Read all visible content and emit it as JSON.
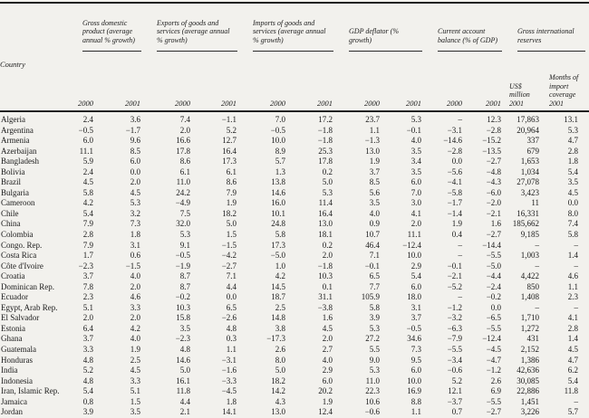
{
  "colors": {
    "background": "#f2f1ed",
    "text": "#1a1a1a",
    "rule": "#222222"
  },
  "table": {
    "country_header": "Country",
    "group_headers": [
      "Gross domestic product (average annual % growth)",
      "Exports of goods and services (average annual % growth)",
      "Imports of goods and services (average annual % growth)",
      "GDP deflator (% growth)",
      "Current account balance (% of GDP)",
      "Gross international reserves"
    ],
    "year_columns": [
      "2000",
      "2001",
      "2000",
      "2001",
      "2000",
      "2001",
      "2000",
      "2001",
      "2000",
      "2001"
    ],
    "reserves_usd_header": "US$\nmillion\n2001",
    "reserves_months_header": "Months of\nimport\ncoverage\n2001",
    "rows": [
      {
        "country": "Algeria",
        "values": [
          "2.4",
          "3.6",
          "7.4",
          "−1.1",
          "7.0",
          "17.2",
          "23.7",
          "5.3",
          "–",
          "12.3",
          "17,863",
          "13.1"
        ]
      },
      {
        "country": "Argentina",
        "values": [
          "−0.5",
          "−1.7",
          "2.0",
          "5.2",
          "−0.5",
          "−1.8",
          "1.1",
          "−0.1",
          "−3.1",
          "−2.8",
          "20,964",
          "5.3"
        ]
      },
      {
        "country": "Armenia",
        "values": [
          "6.0",
          "9.6",
          "16.6",
          "12.7",
          "10.0",
          "−1.8",
          "−1.3",
          "4.0",
          "−14.6",
          "−15.2",
          "337",
          "4.7"
        ]
      },
      {
        "country": "Azerbaijan",
        "values": [
          "11.1",
          "8.5",
          "17.8",
          "16.4",
          "8.9",
          "25.3",
          "13.0",
          "3.5",
          "−2.8",
          "−13.5",
          "679",
          "2.8"
        ]
      },
      {
        "country": "Bangladesh",
        "values": [
          "5.9",
          "6.0",
          "8.6",
          "17.3",
          "5.7",
          "17.8",
          "1.9",
          "3.4",
          "0.0",
          "−2.7",
          "1,653",
          "1.8"
        ]
      },
      {
        "country": "Bolivia",
        "values": [
          "2.4",
          "0.0",
          "6.1",
          "6.1",
          "1.3",
          "0.2",
          "3.7",
          "3.5",
          "−5.6",
          "−4.8",
          "1,034",
          "5.4"
        ]
      },
      {
        "country": "Brazil",
        "values": [
          "4.5",
          "2.0",
          "11.0",
          "8.6",
          "13.8",
          "5.0",
          "8.5",
          "6.0",
          "−4.1",
          "−4.3",
          "27,078",
          "3.5"
        ]
      },
      {
        "country": "Bulgaria",
        "values": [
          "5.8",
          "4.5",
          "24.2",
          "7.9",
          "14.6",
          "5.3",
          "5.6",
          "7.0",
          "−5.8",
          "−6.0",
          "3,423",
          "4.5"
        ]
      },
      {
        "country": "Cameroon",
        "values": [
          "4.2",
          "5.3",
          "−4.9",
          "1.9",
          "16.0",
          "11.4",
          "3.5",
          "3.0",
          "−1.7",
          "−2.0",
          "11",
          "0.0"
        ]
      },
      {
        "country": "Chile",
        "values": [
          "5.4",
          "3.2",
          "7.5",
          "18.2",
          "10.1",
          "16.4",
          "4.0",
          "4.1",
          "−1.4",
          "−2.1",
          "16,331",
          "8.0"
        ]
      },
      {
        "country": "China",
        "values": [
          "7.9",
          "7.3",
          "32.0",
          "5.0",
          "24.8",
          "13.0",
          "0.9",
          "2.0",
          "1.9",
          "1.6",
          "185,662",
          "7.4"
        ]
      },
      {
        "country": "Colombia",
        "values": [
          "2.8",
          "1.8",
          "5.3",
          "1.5",
          "5.8",
          "18.1",
          "10.7",
          "11.1",
          "0.4",
          "−2.7",
          "9,185",
          "5.8"
        ]
      },
      {
        "country": "Congo. Rep.",
        "values": [
          "7.9",
          "3.1",
          "9.1",
          "−1.5",
          "17.3",
          "0.2",
          "46.4",
          "−12.4",
          "–",
          "−14.4",
          "–",
          "–"
        ]
      },
      {
        "country": "Costa Rica",
        "values": [
          "1.7",
          "0.6",
          "−0.5",
          "−4.2",
          "−5.0",
          "2.0",
          "7.1",
          "10.0",
          "–",
          "−5.5",
          "1,003",
          "1.4"
        ]
      },
      {
        "country": "Côte d'Ivoire",
        "values": [
          "−2.3",
          "−1.5",
          "−1.9",
          "−2.7",
          "1.0",
          "−1.8",
          "−0.1",
          "2.9",
          "−0.1",
          "−5.0",
          "–",
          "–"
        ]
      },
      {
        "country": "Croatia",
        "values": [
          "3.7",
          "4.0",
          "8.7",
          "7.1",
          "4.2",
          "10.3",
          "6.5",
          "5.4",
          "−2.1",
          "−4.4",
          "4,422",
          "4.6"
        ]
      },
      {
        "country": "Dominican Rep.",
        "values": [
          "7.8",
          "2.0",
          "8.7",
          "4.4",
          "14.5",
          "0.1",
          "7.7",
          "6.0",
          "−5.2",
          "−2.4",
          "850",
          "1.1"
        ]
      },
      {
        "country": "Ecuador",
        "values": [
          "2.3",
          "4.6",
          "−0.2",
          "0.0",
          "18.7",
          "31.1",
          "105.9",
          "18.0",
          "–",
          "−0.2",
          "1,408",
          "2.3"
        ]
      },
      {
        "country": "Egypt, Arab Rep.",
        "values": [
          "5.1",
          "3.3",
          "10.3",
          "6.5",
          "2.5",
          "−3.8",
          "5.8",
          "3.1",
          "−1.2",
          "0.0",
          "–",
          "–"
        ]
      },
      {
        "country": "El Salvador",
        "values": [
          "2.0",
          "2.0",
          "15.8",
          "−2.6",
          "14.8",
          "1.6",
          "3.9",
          "3.7",
          "−3.2",
          "−6.5",
          "1,710",
          "4.1"
        ]
      },
      {
        "country": "Estonia",
        "values": [
          "6.4",
          "4.2",
          "3.5",
          "4.8",
          "3.8",
          "4.5",
          "5.3",
          "−0.5",
          "−6.3",
          "−5.5",
          "1,272",
          "2.8"
        ]
      },
      {
        "country": "Ghana",
        "values": [
          "3.7",
          "4.0",
          "−2.3",
          "0.3",
          "−17.3",
          "2.0",
          "27.2",
          "34.6",
          "−7.9",
          "−12.4",
          "431",
          "1.4"
        ]
      },
      {
        "country": "Guatemala",
        "values": [
          "3.3",
          "1.9",
          "4.8",
          "1.1",
          "2.6",
          "2.7",
          "5.5",
          "7.3",
          "−5.5",
          "−4.5",
          "2,152",
          "4.5"
        ]
      },
      {
        "country": "Honduras",
        "values": [
          "4.8",
          "2.5",
          "14.6",
          "−3.1",
          "8.0",
          "4.0",
          "9.0",
          "9.5",
          "−3.4",
          "−4.7",
          "1,386",
          "4.7"
        ]
      },
      {
        "country": "India",
        "values": [
          "5.2",
          "4.5",
          "5.0",
          "−1.6",
          "5.0",
          "2.9",
          "5.3",
          "6.0",
          "−0.6",
          "−1.2",
          "42,636",
          "6.2"
        ]
      },
      {
        "country": "Indonesia",
        "values": [
          "4.8",
          "3.3",
          "16.1",
          "−3.3",
          "18.2",
          "6.0",
          "11.0",
          "10.0",
          "5.2",
          "2.6",
          "30,085",
          "5.4"
        ]
      },
      {
        "country": "Iran, Islamic Rep.",
        "values": [
          "5.4",
          "5.1",
          "11.8",
          "−4.5",
          "14.2",
          "20.2",
          "22.3",
          "16.9",
          "12.1",
          "6.9",
          "22,886",
          "11.8"
        ]
      },
      {
        "country": "Jamaica",
        "values": [
          "0.8",
          "1.5",
          "4.4",
          "1.8",
          "4.3",
          "1.9",
          "10.6",
          "8.8",
          "−3.7",
          "−5.5",
          "1,451",
          "–"
        ]
      },
      {
        "country": "Jordan",
        "values": [
          "3.9",
          "3.5",
          "2.1",
          "14.1",
          "13.0",
          "12.4",
          "−0.6",
          "1.1",
          "0.7",
          "−2.7",
          "3,226",
          "5.7"
        ]
      }
    ]
  }
}
